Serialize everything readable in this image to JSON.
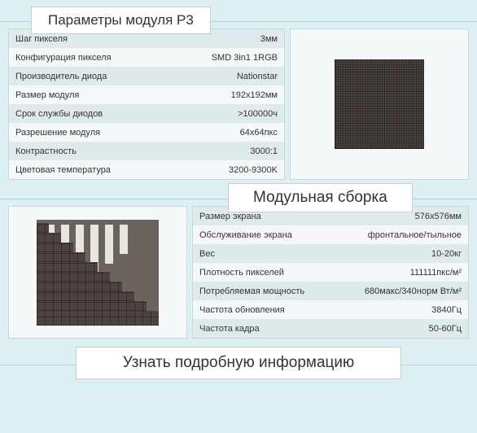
{
  "header1": {
    "title": "Параметры модуля P3"
  },
  "table1": [
    {
      "k": "Шаг пикселя",
      "v": "3мм"
    },
    {
      "k": "Конфигурация пикселя",
      "v": "SMD 3in1 1RGB"
    },
    {
      "k": "Производитель диода",
      "v": "Nationstar"
    },
    {
      "k": "Размер модуля",
      "v": "192x192мм"
    },
    {
      "k": "Срок службы диодов",
      "v": ">100000ч"
    },
    {
      "k": "Разрешение модуля",
      "v": "64x64пкс"
    },
    {
      "k": "Контрастность",
      "v": "3000:1"
    },
    {
      "k": "Цветовая температура",
      "v": "3200-9300K"
    }
  ],
  "header2": {
    "title": "Модульная сборка"
  },
  "table2": [
    {
      "k": "Размер экрана",
      "v": "576x576мм"
    },
    {
      "k": "Обслуживание экрана",
      "v": "фронтальное/тыльное"
    },
    {
      "k": "Вес",
      "v": "10-20кг"
    },
    {
      "k": "Плотность пикселей",
      "v": "111111пкс/м²"
    },
    {
      "k": "Потребляемая мощность",
      "v": "680макс/340норм Вт/м²"
    },
    {
      "k": "Частота обновления",
      "v": "3840Гц"
    },
    {
      "k": "Частота кадра",
      "v": "50-60Гц"
    }
  ],
  "cta": {
    "label": "Узнать подробную информацию"
  },
  "colors": {
    "page_bg": "#dceff2",
    "box_bg": "#ffffff",
    "border": "#c5d8dc",
    "row_odd": "#dfeaed",
    "row_even": "#f5f9fa",
    "module": "#4a4340"
  }
}
